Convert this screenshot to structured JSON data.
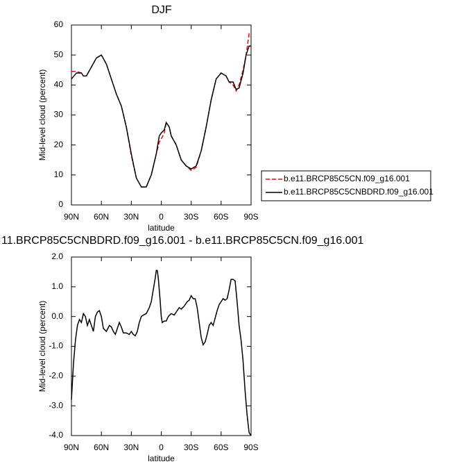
{
  "chart_data": [
    {
      "type": "line",
      "title": "DJF",
      "x_label": "latitude",
      "y_label": "Mid-level cloud (percent)",
      "x": [
        90,
        85,
        80,
        78,
        75,
        70,
        65,
        60,
        55,
        50,
        45,
        40,
        35,
        30,
        25,
        20,
        15,
        10,
        5,
        2,
        0,
        -3,
        -5,
        -8,
        -10,
        -15,
        -20,
        -25,
        -30,
        -35,
        -40,
        -45,
        -50,
        -55,
        -60,
        -65,
        -68,
        -72,
        -75,
        -78,
        -82,
        -85,
        -88,
        -90
      ],
      "xlim": [
        90,
        -90
      ],
      "xticks": [
        {
          "value": 90,
          "label": "90N"
        },
        {
          "value": 60,
          "label": "60N"
        },
        {
          "value": 30,
          "label": "30N"
        },
        0,
        {
          "value": -30,
          "label": "30S"
        },
        {
          "value": -60,
          "label": "60S"
        },
        {
          "value": -90,
          "label": "90S"
        }
      ],
      "ylim": [
        0,
        60
      ],
      "yticks": [
        0,
        10,
        20,
        30,
        40,
        50,
        60
      ],
      "legend": "right",
      "series": [
        {
          "name": "b.e11.BRCP85C5CN.f09_g16.001",
          "color": "#ff0000",
          "dash": true,
          "values": [
            44.5,
            44.5,
            44,
            43,
            43,
            46,
            49,
            50,
            47,
            42,
            37,
            33,
            26,
            16.5,
            9,
            6,
            6,
            10,
            17,
            21,
            22,
            24,
            27.5,
            26,
            23,
            20,
            15,
            13,
            11.5,
            12.5,
            18,
            26,
            35,
            42,
            44,
            43,
            41,
            40,
            38,
            40,
            45,
            50,
            57,
            56
          ]
        },
        {
          "name": "b.e11.BRCP85C5CNBDRD.f09_g16.001",
          "color": "#000000",
          "dash": false,
          "values": [
            42,
            44,
            44,
            43,
            43,
            46,
            49,
            50,
            47,
            42,
            37,
            33,
            26,
            17,
            9,
            6,
            6,
            10,
            17,
            23,
            24,
            25,
            27.5,
            26,
            23,
            20,
            15,
            13,
            12,
            13,
            18,
            26,
            35,
            42,
            44,
            43,
            41,
            41,
            38.5,
            39,
            44,
            50,
            53,
            53
          ]
        }
      ]
    },
    {
      "type": "line",
      "title": "11.BRCP85C5CNBDRD.f09_g16.001 - b.e11.BRCP85C5CN.f09_g16.001",
      "x_label": "latitude",
      "y_label": "Mid-level cloud (percent)",
      "x": [
        90,
        88,
        86,
        84,
        82,
        80,
        78,
        76,
        74,
        72,
        70,
        68,
        66,
        64,
        62,
        60,
        58,
        55,
        52,
        50,
        48,
        46,
        44,
        42,
        40,
        38,
        35,
        32,
        30,
        28,
        26,
        24,
        22,
        20,
        18,
        15,
        12,
        10,
        8,
        6,
        5,
        4,
        3,
        1,
        0,
        -1,
        -3,
        -5,
        -7,
        -10,
        -13,
        -15,
        -18,
        -20,
        -23,
        -26,
        -28,
        -30,
        -32,
        -34,
        -36,
        -38,
        -40,
        -42,
        -44,
        -46,
        -48,
        -50,
        -52,
        -54,
        -56,
        -58,
        -60,
        -62,
        -64,
        -66,
        -68,
        -70,
        -72,
        -74,
        -76,
        -78,
        -80,
        -82,
        -84,
        -86,
        -88,
        -90
      ],
      "xlim": [
        90,
        -90
      ],
      "xticks": [
        {
          "value": 90,
          "label": "90N"
        },
        {
          "value": 60,
          "label": "60N"
        },
        {
          "value": 30,
          "label": "30N"
        },
        0,
        {
          "value": -30,
          "label": "30S"
        },
        {
          "value": -60,
          "label": "60S"
        },
        {
          "value": -90,
          "label": "90S"
        }
      ],
      "ylim": [
        -4,
        2
      ],
      "yticks": [
        {
          "value": -4,
          "label": "-4.0"
        },
        {
          "value": -3,
          "label": "-3.0"
        },
        {
          "value": -2,
          "label": "-2.0"
        },
        {
          "value": -1,
          "label": "-1.0"
        },
        {
          "value": 0,
          "label": "0.0"
        },
        {
          "value": 1,
          "label": "1.0"
        },
        {
          "value": 2,
          "label": "2.0"
        }
      ],
      "series": [
        {
          "color": "#000000",
          "dash": false,
          "values": [
            -2.8,
            -1.6,
            -0.8,
            -0.3,
            -0.1,
            -0.2,
            0.1,
            0,
            -0.3,
            -0.1,
            -0.3,
            -0.5,
            0,
            0.15,
            0.2,
            0,
            -0.4,
            -0.5,
            -0.3,
            -0.35,
            -0.5,
            -0.6,
            -0.4,
            -0.2,
            -0.35,
            -0.55,
            -0.55,
            -0.6,
            -0.5,
            -0.6,
            -0.65,
            -0.5,
            -0.2,
            0,
            0.05,
            0.1,
            0.3,
            0.5,
            0.9,
            1.3,
            1.55,
            1.55,
            1.3,
            0.5,
            0,
            -0.2,
            -0.15,
            -0.15,
            0,
            0.1,
            0.05,
            0.15,
            0.3,
            0.25,
            0.35,
            0.5,
            0.55,
            0.7,
            0.6,
            0.6,
            0.3,
            -0.2,
            -0.7,
            -0.95,
            -0.85,
            -0.6,
            -0.3,
            -0.2,
            -0.3,
            -0.05,
            0.2,
            0.4,
            0.5,
            0.6,
            0.55,
            0.6,
            0.9,
            1.25,
            1.25,
            1.2,
            0.5,
            -0.3,
            -0.8,
            -1.5,
            -2.5,
            -3.3,
            -3.9,
            -4
          ]
        }
      ]
    }
  ]
}
